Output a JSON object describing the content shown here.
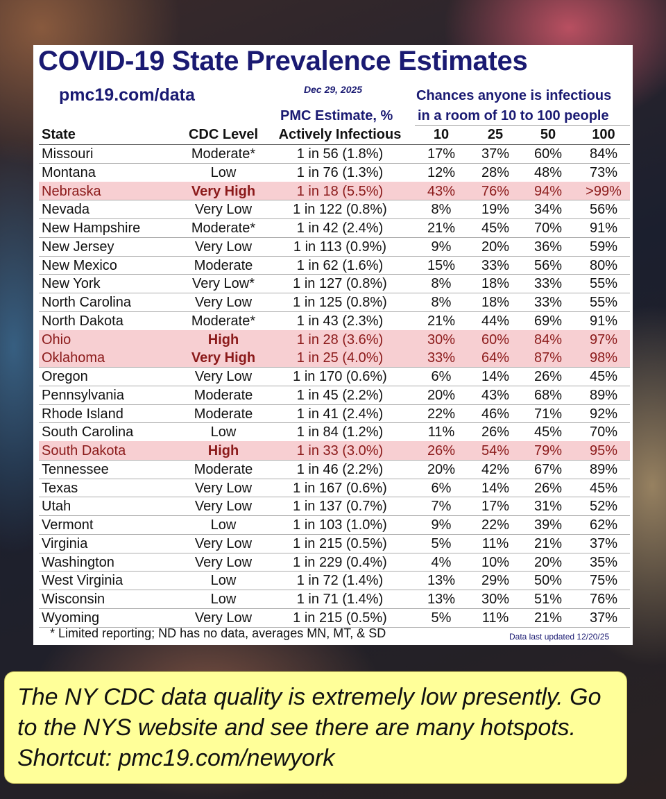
{
  "header": {
    "title": "COVID-19 State Prevalence Estimates",
    "site": "pmc19.com/data",
    "date": "Dec 29, 2025",
    "chances_line1": "Chances anyone is infectious",
    "chances_line2": "in a room of 10 to 100 people",
    "estimate_line1": "PMC Estimate, %"
  },
  "table": {
    "columns": [
      "State",
      "CDC Level",
      "Actively Infectious",
      "10",
      "25",
      "50",
      "100"
    ],
    "rows": [
      {
        "cells": [
          "Missouri",
          "Moderate*",
          "1 in 56 (1.8%)",
          "17%",
          "37%",
          "60%",
          "84%"
        ]
      },
      {
        "cells": [
          "Montana",
          "Low",
          "1 in 76 (1.3%)",
          "12%",
          "28%",
          "48%",
          "73%"
        ]
      },
      {
        "cells": [
          "Nebraska",
          "Very High",
          "1 in 18 (5.5%)",
          "43%",
          "76%",
          "94%",
          ">99%"
        ],
        "alert": true
      },
      {
        "cells": [
          "Nevada",
          "Very Low",
          "1 in 122 (0.8%)",
          "8%",
          "19%",
          "34%",
          "56%"
        ]
      },
      {
        "cells": [
          "New Hampshire",
          "Moderate*",
          "1 in 42 (2.4%)",
          "21%",
          "45%",
          "70%",
          "91%"
        ]
      },
      {
        "cells": [
          "New Jersey",
          "Very Low",
          "1 in 113 (0.9%)",
          "9%",
          "20%",
          "36%",
          "59%"
        ]
      },
      {
        "cells": [
          "New Mexico",
          "Moderate",
          "1 in 62 (1.6%)",
          "15%",
          "33%",
          "56%",
          "80%"
        ]
      },
      {
        "cells": [
          "New York",
          "Very Low*",
          "1 in 127 (0.8%)",
          "8%",
          "18%",
          "33%",
          "55%"
        ]
      },
      {
        "cells": [
          "North Carolina",
          "Very Low",
          "1 in 125 (0.8%)",
          "8%",
          "18%",
          "33%",
          "55%"
        ]
      },
      {
        "cells": [
          "North Dakota",
          "Moderate*",
          "1 in 43 (2.3%)",
          "21%",
          "44%",
          "69%",
          "91%"
        ]
      },
      {
        "cells": [
          "Ohio",
          "High",
          "1 in 28 (3.6%)",
          "30%",
          "60%",
          "84%",
          "97%"
        ],
        "alert": true
      },
      {
        "cells": [
          "Oklahoma",
          "Very High",
          "1 in 25 (4.0%)",
          "33%",
          "64%",
          "87%",
          "98%"
        ],
        "alert": true
      },
      {
        "cells": [
          "Oregon",
          "Very Low",
          "1 in 170 (0.6%)",
          "6%",
          "14%",
          "26%",
          "45%"
        ]
      },
      {
        "cells": [
          "Pennsylvania",
          "Moderate",
          "1 in 45 (2.2%)",
          "20%",
          "43%",
          "68%",
          "89%"
        ]
      },
      {
        "cells": [
          "Rhode Island",
          "Moderate",
          "1 in 41 (2.4%)",
          "22%",
          "46%",
          "71%",
          "92%"
        ]
      },
      {
        "cells": [
          "South Carolina",
          "Low",
          "1 in 84 (1.2%)",
          "11%",
          "26%",
          "45%",
          "70%"
        ]
      },
      {
        "cells": [
          "South Dakota",
          "High",
          "1 in 33 (3.0%)",
          "26%",
          "54%",
          "79%",
          "95%"
        ],
        "alert": true
      },
      {
        "cells": [
          "Tennessee",
          "Moderate",
          "1 in 46 (2.2%)",
          "20%",
          "42%",
          "67%",
          "89%"
        ]
      },
      {
        "cells": [
          "Texas",
          "Very Low",
          "1 in 167 (0.6%)",
          "6%",
          "14%",
          "26%",
          "45%"
        ]
      },
      {
        "cells": [
          "Utah",
          "Very Low",
          "1 in 137 (0.7%)",
          "7%",
          "17%",
          "31%",
          "52%"
        ]
      },
      {
        "cells": [
          "Vermont",
          "Low",
          "1 in 103 (1.0%)",
          "9%",
          "22%",
          "39%",
          "62%"
        ]
      },
      {
        "cells": [
          "Virginia",
          "Very Low",
          "1 in 215 (0.5%)",
          "5%",
          "11%",
          "21%",
          "37%"
        ]
      },
      {
        "cells": [
          "Washington",
          "Very Low",
          "1 in 229 (0.4%)",
          "4%",
          "10%",
          "20%",
          "35%"
        ]
      },
      {
        "cells": [
          "West Virginia",
          "Low",
          "1 in 72 (1.4%)",
          "13%",
          "29%",
          "50%",
          "75%"
        ]
      },
      {
        "cells": [
          "Wisconsin",
          "Low",
          "1 in 71 (1.4%)",
          "13%",
          "30%",
          "51%",
          "76%"
        ]
      },
      {
        "cells": [
          "Wyoming",
          "Very Low",
          "1 in 215 (0.5%)",
          "5%",
          "11%",
          "21%",
          "37%"
        ]
      }
    ]
  },
  "footer": {
    "note": "* Limited reporting; ND has no data, averages MN, MT, & SD",
    "updated": "Data last updated 12/20/25"
  },
  "callout": {
    "text": "The NY CDC data quality is extremely low presently. Go to the NYS website and see there are many hotspots. Shortcut: pmc19.com/newyork"
  }
}
